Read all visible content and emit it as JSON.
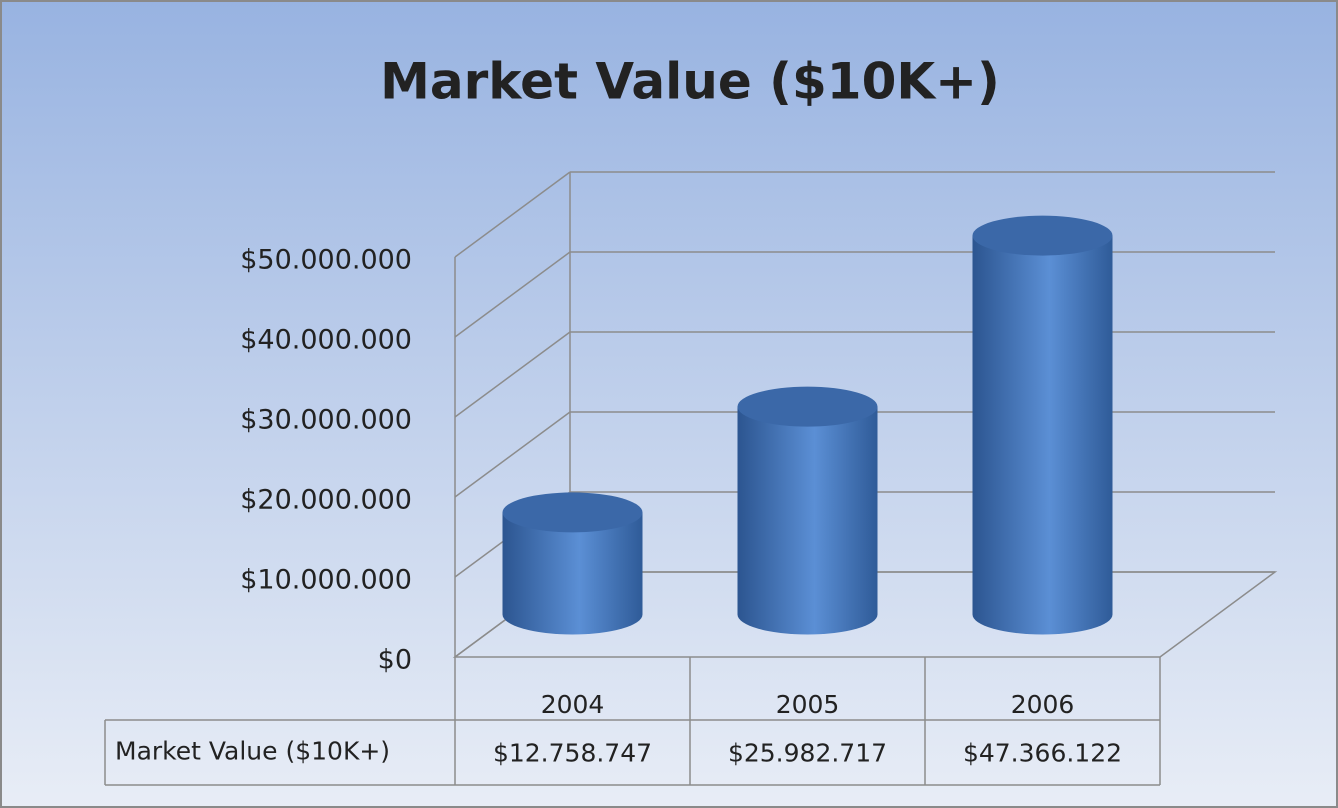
{
  "chart_data": {
    "type": "cylinder",
    "title": "Market Value ($10K+)",
    "categories": [
      "2004",
      "2005",
      "2006"
    ],
    "series": [
      {
        "name": "Market Value ($10K+)",
        "color": "#4f81bd",
        "values": [
          12758747,
          25982717,
          47366122
        ],
        "value_labels": [
          "$12.758.747",
          "$25.982.717",
          "$47.366.122"
        ]
      }
    ],
    "ylim": [
      0,
      50000000
    ],
    "yticks": [
      {
        "value": 0,
        "label": "$0"
      },
      {
        "value": 10000000,
        "label": "$10.000.000"
      },
      {
        "value": 20000000,
        "label": "$20.000.000"
      },
      {
        "value": 30000000,
        "label": "$30.000.000"
      },
      {
        "value": 40000000,
        "label": "$40.000.000"
      },
      {
        "value": 50000000,
        "label": "$50.000.000"
      }
    ],
    "grid": true
  }
}
